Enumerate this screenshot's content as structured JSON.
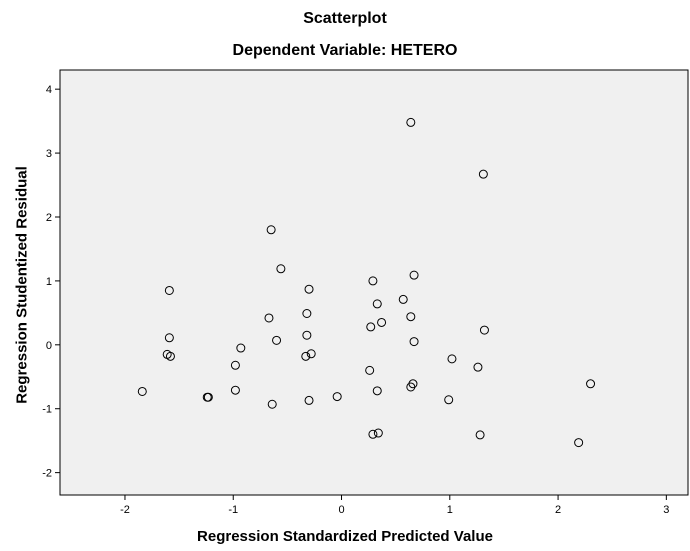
{
  "chart_data": {
    "type": "scatter",
    "title": "Scatterplot",
    "subtitle": "Dependent Variable: HETERO",
    "xlabel": "Regression Standardized Predicted Value",
    "ylabel": "Regression Studentized Residual",
    "xlim": [
      -2.6,
      3.2
    ],
    "ylim": [
      -2.35,
      4.3
    ],
    "xticks": [
      -2,
      -1,
      0,
      1,
      2,
      3
    ],
    "yticks": [
      -2,
      -1,
      0,
      1,
      2,
      3,
      4
    ],
    "grid": false,
    "points": [
      {
        "x": -1.84,
        "y": -0.73
      },
      {
        "x": -1.59,
        "y": 0.85
      },
      {
        "x": -1.59,
        "y": 0.11
      },
      {
        "x": -1.61,
        "y": -0.15
      },
      {
        "x": -1.58,
        "y": -0.18
      },
      {
        "x": -1.24,
        "y": -0.82
      },
      {
        "x": -1.23,
        "y": -0.82
      },
      {
        "x": -0.98,
        "y": -0.32
      },
      {
        "x": -0.98,
        "y": -0.71
      },
      {
        "x": -0.93,
        "y": -0.05
      },
      {
        "x": -0.67,
        "y": 0.42
      },
      {
        "x": -0.65,
        "y": 1.8
      },
      {
        "x": -0.64,
        "y": -0.93
      },
      {
        "x": -0.6,
        "y": 0.07
      },
      {
        "x": -0.56,
        "y": 1.19
      },
      {
        "x": -0.32,
        "y": 0.49
      },
      {
        "x": -0.32,
        "y": 0.15
      },
      {
        "x": -0.33,
        "y": -0.18
      },
      {
        "x": -0.3,
        "y": 0.87
      },
      {
        "x": -0.28,
        "y": -0.14
      },
      {
        "x": -0.3,
        "y": -0.87
      },
      {
        "x": -0.04,
        "y": -0.81
      },
      {
        "x": 0.27,
        "y": 0.28
      },
      {
        "x": 0.26,
        "y": -0.4
      },
      {
        "x": 0.29,
        "y": 1.0
      },
      {
        "x": 0.33,
        "y": 0.64
      },
      {
        "x": 0.37,
        "y": 0.35
      },
      {
        "x": 0.33,
        "y": -0.72
      },
      {
        "x": 0.29,
        "y": -1.4
      },
      {
        "x": 0.34,
        "y": -1.38
      },
      {
        "x": 0.57,
        "y": 0.71
      },
      {
        "x": 0.64,
        "y": 3.48
      },
      {
        "x": 0.64,
        "y": 0.44
      },
      {
        "x": 0.67,
        "y": 1.09
      },
      {
        "x": 0.67,
        "y": 0.05
      },
      {
        "x": 0.66,
        "y": -0.61
      },
      {
        "x": 0.64,
        "y": -0.66
      },
      {
        "x": 0.99,
        "y": -0.86
      },
      {
        "x": 1.02,
        "y": -0.22
      },
      {
        "x": 1.26,
        "y": -0.35
      },
      {
        "x": 1.28,
        "y": -1.41
      },
      {
        "x": 1.31,
        "y": 2.67
      },
      {
        "x": 1.32,
        "y": 0.23
      },
      {
        "x": 2.19,
        "y": -1.53
      },
      {
        "x": 2.3,
        "y": -0.61
      }
    ]
  }
}
